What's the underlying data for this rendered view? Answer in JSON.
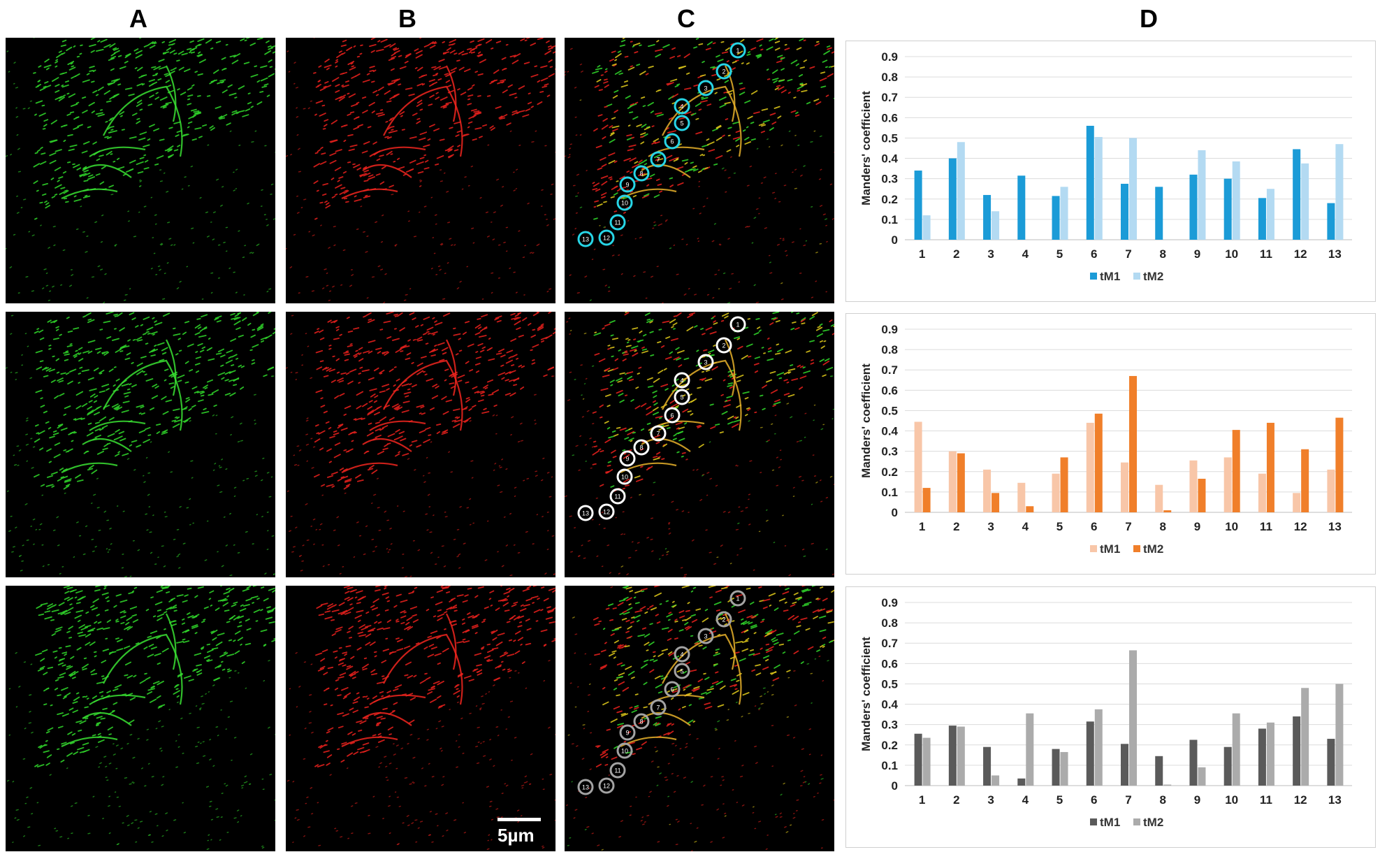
{
  "column_labels": [
    "A",
    "B",
    "C",
    "D"
  ],
  "scale_bar_label": "5µm",
  "roi_numbers": [
    "1",
    "2",
    "3",
    "4",
    "5",
    "6",
    "7",
    "8",
    "9",
    "10",
    "11",
    "12",
    "13"
  ],
  "ring_colors": [
    "#27d5e6",
    "#ffffff",
    "#a3a3a3"
  ],
  "chart_data": [
    {
      "type": "bar",
      "categories": [
        "1",
        "2",
        "3",
        "4",
        "5",
        "6",
        "7",
        "8",
        "9",
        "10",
        "11",
        "12",
        "13"
      ],
      "ylabel": "Manders' coefficient",
      "ylim": [
        0,
        0.9
      ],
      "yticks": [
        "0",
        "0.1",
        "0.2",
        "0.3",
        "0.4",
        "0.5",
        "0.6",
        "0.7",
        "0.8",
        "0.9"
      ],
      "grid": true,
      "legend": "bottom-center",
      "series": [
        {
          "name": "tM1",
          "color": "#1b9bd7",
          "values": [
            0.34,
            0.4,
            0.22,
            0.315,
            0.215,
            0.56,
            0.275,
            0.26,
            0.32,
            0.3,
            0.205,
            0.445,
            0.18
          ]
        },
        {
          "name": "tM2",
          "color": "#b3daf2",
          "values": [
            0.12,
            0.48,
            0.14,
            0,
            0.26,
            0.505,
            0.5,
            0,
            0.44,
            0.385,
            0.25,
            0.375,
            0.47
          ]
        }
      ]
    },
    {
      "type": "bar",
      "categories": [
        "1",
        "2",
        "3",
        "4",
        "5",
        "6",
        "7",
        "8",
        "9",
        "10",
        "11",
        "12",
        "13"
      ],
      "ylabel": "Manders' coefficient",
      "ylim": [
        0,
        0.9
      ],
      "yticks": [
        "0",
        "0.1",
        "0.2",
        "0.3",
        "0.4",
        "0.5",
        "0.6",
        "0.7",
        "0.8",
        "0.9"
      ],
      "grid": true,
      "legend": "bottom-center",
      "series": [
        {
          "name": "tM1",
          "color": "#f8c6a8",
          "values": [
            0.445,
            0.3,
            0.21,
            0.145,
            0.19,
            0.44,
            0.245,
            0.135,
            0.255,
            0.27,
            0.19,
            0.095,
            0.21
          ]
        },
        {
          "name": "tM2",
          "color": "#f07f2a",
          "values": [
            0.12,
            0.29,
            0.095,
            0.03,
            0.27,
            0.485,
            0.67,
            0.01,
            0.165,
            0.405,
            0.44,
            0.31,
            0.465
          ]
        }
      ]
    },
    {
      "type": "bar",
      "categories": [
        "1",
        "2",
        "3",
        "4",
        "5",
        "6",
        "7",
        "8",
        "9",
        "10",
        "11",
        "12",
        "13"
      ],
      "ylabel": "Manders' coefficient",
      "ylim": [
        0,
        0.9
      ],
      "yticks": [
        "0",
        "0.1",
        "0.2",
        "0.3",
        "0.4",
        "0.5",
        "0.6",
        "0.7",
        "0.8",
        "0.9"
      ],
      "grid": true,
      "legend": "bottom-center",
      "series": [
        {
          "name": "tM1",
          "color": "#5a5a5a",
          "values": [
            0.255,
            0.295,
            0.19,
            0.035,
            0.18,
            0.315,
            0.205,
            0.145,
            0.225,
            0.19,
            0.28,
            0.34,
            0.23
          ]
        },
        {
          "name": "tM2",
          "color": "#ababab",
          "values": [
            0.235,
            0.29,
            0.05,
            0.355,
            0.165,
            0.375,
            0.665,
            0.005,
            0.09,
            0.355,
            0.31,
            0.48,
            0.5
          ]
        }
      ]
    }
  ]
}
